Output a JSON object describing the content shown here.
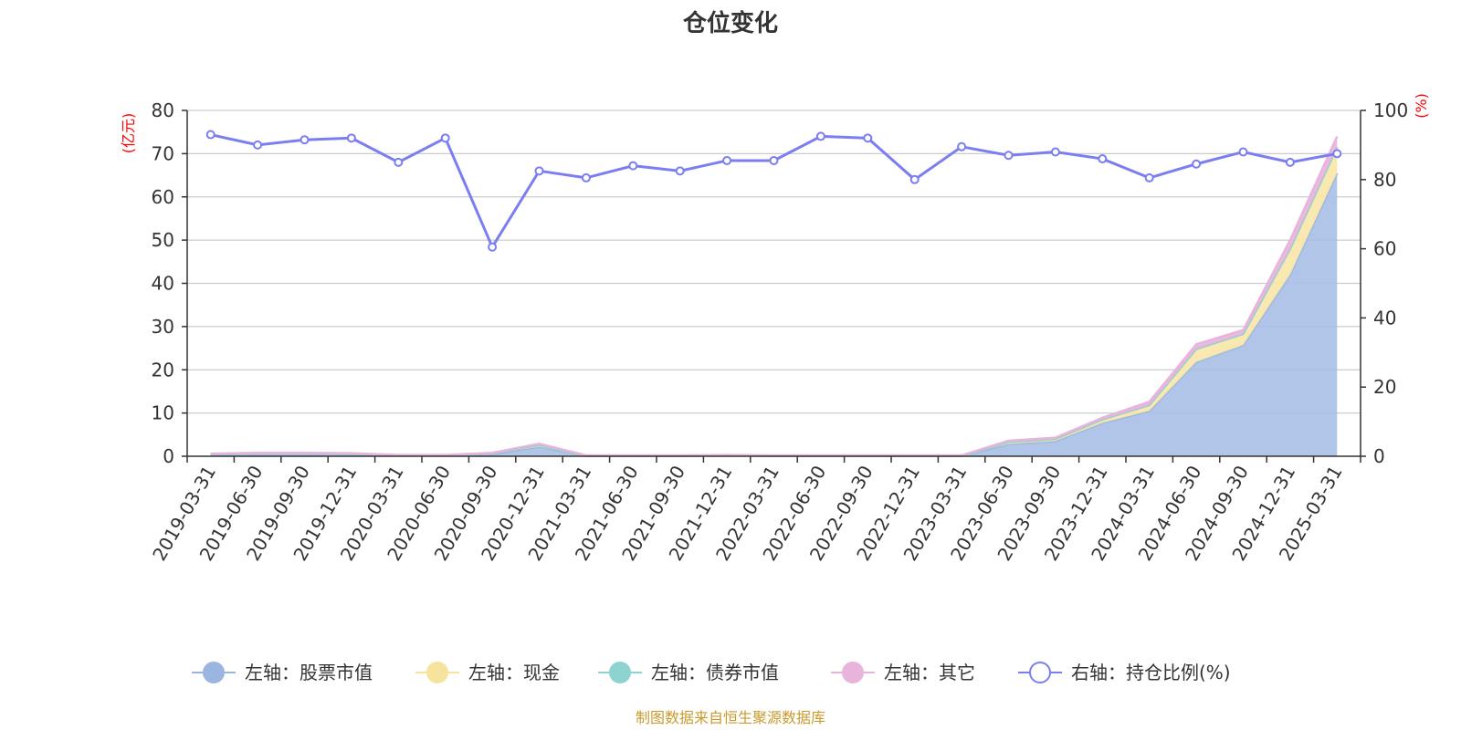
{
  "title": "仓位变化",
  "source": "制图数据来自恒生聚源数据库",
  "units": {
    "left": "(亿元)",
    "right": "(%)"
  },
  "colors": {
    "stock": "#a7bfe6",
    "stock_line": "#9ab6e0",
    "cash": "#f8e7a8",
    "cash_line": "#f6e39c",
    "bond": "#8fd3d0",
    "other": "#e8b4dc",
    "ratio": "#7b7ef0",
    "axis_unit": "#ff0000",
    "source": "#c99a2e"
  },
  "legend": [
    {
      "label": "左轴：股票市值",
      "color": "#9ab6e0",
      "hollow": false
    },
    {
      "label": "左轴：现金",
      "color": "#f6e39c",
      "hollow": false
    },
    {
      "label": "左轴：债券市值",
      "color": "#8fd3d0",
      "hollow": false
    },
    {
      "label": "左轴：其它",
      "color": "#e8b4dc",
      "hollow": false
    },
    {
      "label": "右轴：持仓比例(%)",
      "color": "#7b7ef0",
      "hollow": true
    }
  ],
  "chart_data": {
    "type": "area",
    "categories": [
      "2019-03-31",
      "2019-06-30",
      "2019-09-30",
      "2019-12-31",
      "2020-03-31",
      "2020-06-30",
      "2020-09-30",
      "2020-12-31",
      "2021-03-31",
      "2021-06-30",
      "2021-09-30",
      "2021-12-31",
      "2022-03-31",
      "2022-06-30",
      "2022-09-30",
      "2022-12-31",
      "2023-03-31",
      "2023-06-30",
      "2023-09-30",
      "2023-12-31",
      "2024-03-31",
      "2024-06-30",
      "2024-09-30",
      "2024-12-31",
      "2025-03-31"
    ],
    "left_axis": {
      "unit": "(亿元)",
      "range": [
        0,
        80
      ],
      "ticks": [
        0,
        10,
        20,
        30,
        40,
        50,
        60,
        70,
        80
      ]
    },
    "right_axis": {
      "unit": "(%)",
      "range": [
        0,
        100
      ],
      "ticks": [
        0,
        20,
        40,
        60,
        80,
        100
      ]
    },
    "stacked": true,
    "grid": true,
    "legend_position": "bottom",
    "series": [
      {
        "name": "左轴：股票市值",
        "axis": "left",
        "type": "area",
        "values": [
          0.4,
          0.6,
          0.6,
          0.5,
          0.2,
          0.2,
          0.5,
          2.2,
          0.1,
          0.1,
          0.1,
          0.2,
          0.1,
          0.1,
          0.1,
          0.1,
          0.1,
          2.8,
          3.5,
          7.7,
          10.5,
          21.8,
          25.7,
          42.0,
          65.5
        ]
      },
      {
        "name": "左轴：现金",
        "axis": "left",
        "type": "area",
        "values": [
          0.1,
          0.1,
          0.1,
          0.1,
          0.0,
          0.0,
          0.2,
          0.4,
          0.0,
          0.0,
          0.0,
          0.0,
          0.0,
          0.0,
          0.0,
          0.0,
          0.0,
          0.5,
          0.5,
          0.8,
          1.3,
          3.0,
          2.6,
          6.0,
          6.0
        ]
      },
      {
        "name": "左轴：债券市值",
        "axis": "left",
        "type": "area",
        "values": [
          0,
          0,
          0,
          0,
          0,
          0,
          0,
          0,
          0,
          0,
          0,
          0,
          0,
          0,
          0,
          0,
          0,
          0,
          0,
          0,
          0,
          0,
          0,
          0,
          0
        ]
      },
      {
        "name": "左轴：其它",
        "axis": "left",
        "type": "area",
        "values": [
          0.1,
          0.1,
          0.1,
          0.1,
          0.1,
          0.1,
          0.1,
          0.3,
          0.1,
          0.1,
          0.1,
          0.1,
          0.1,
          0.1,
          0.1,
          0.1,
          0.1,
          0.3,
          0.3,
          0.4,
          0.8,
          1.1,
          0.9,
          2.0,
          2.5
        ]
      },
      {
        "name": "右轴：持仓比例(%)",
        "axis": "right",
        "type": "line",
        "values": [
          93,
          90,
          91.5,
          92,
          85,
          92,
          60.5,
          82.5,
          80.5,
          84,
          82.5,
          85.5,
          85.5,
          92.5,
          92,
          80,
          89.5,
          87,
          88,
          86,
          80.5,
          84.5,
          88,
          85,
          87.5
        ]
      }
    ]
  }
}
